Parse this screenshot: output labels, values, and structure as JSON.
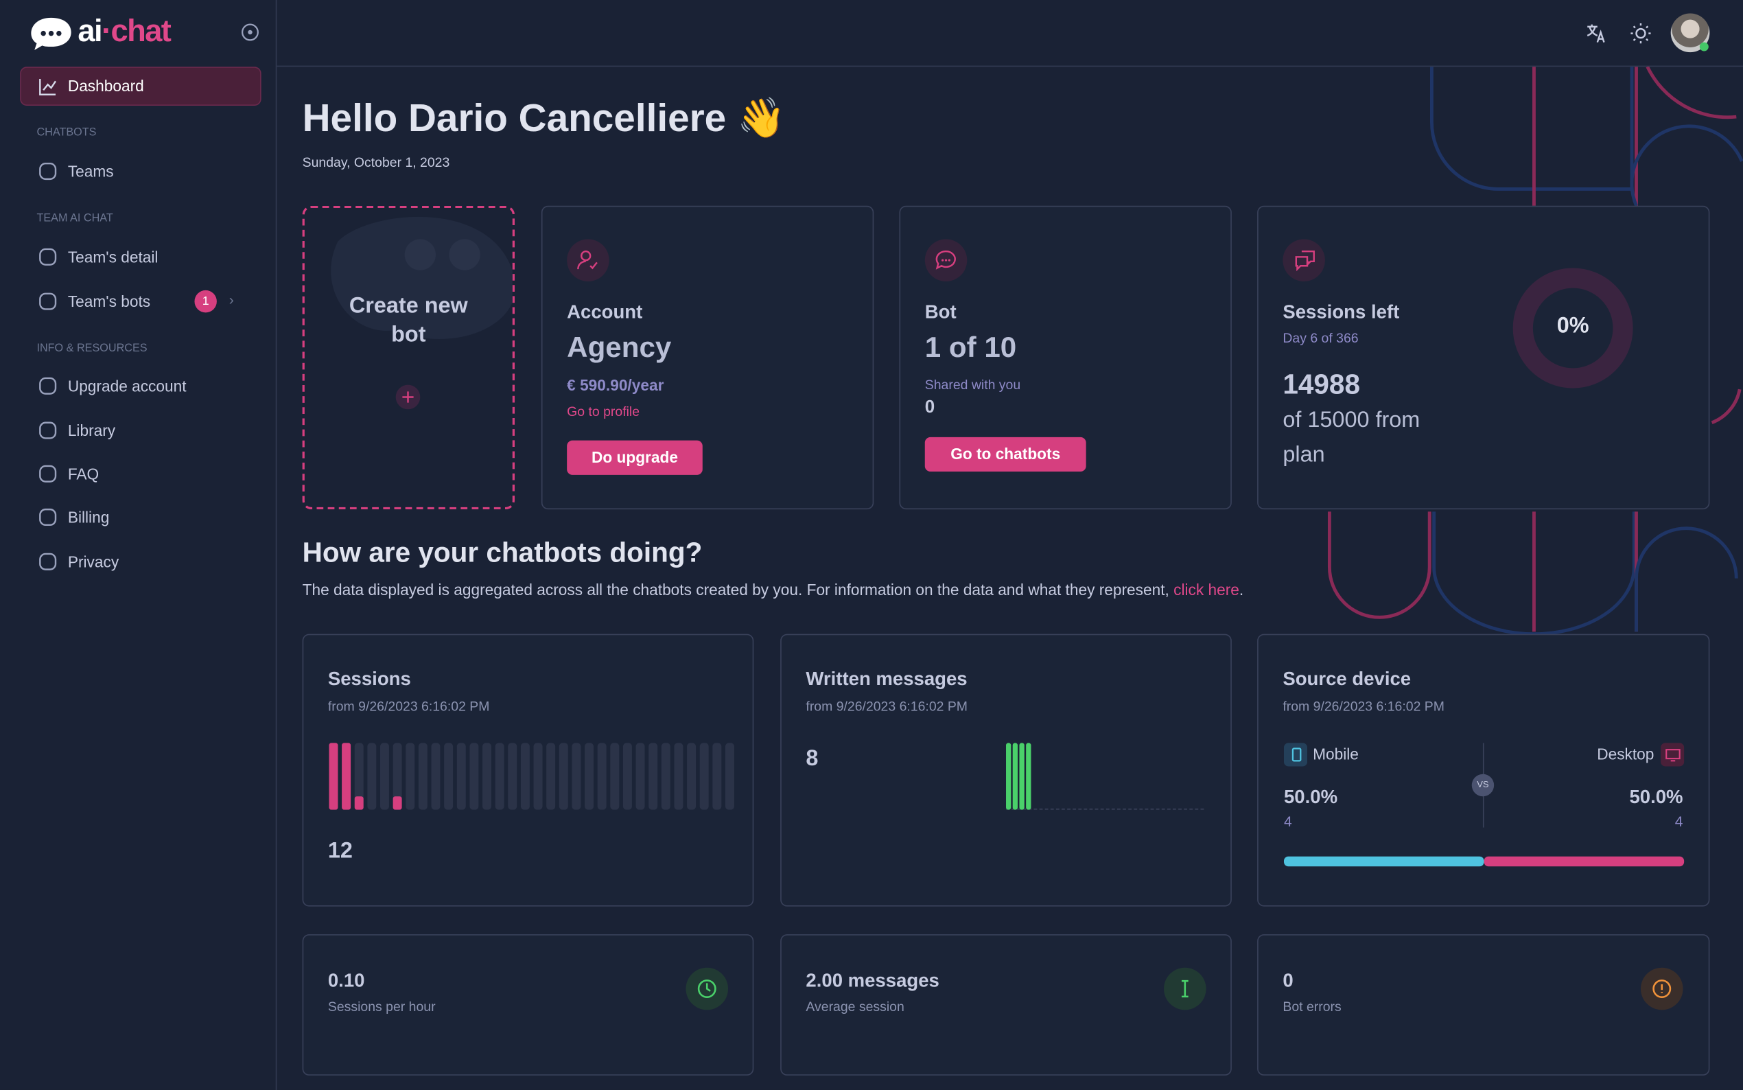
{
  "sidebar": {
    "logo_left": "ai",
    "logo_right": "chat",
    "dashboard": "Dashboard",
    "badge": 1,
    "groups": [
      {
        "heading": "CHATBOTS",
        "items": [
          "Teams"
        ]
      },
      {
        "heading": "TEAM AI CHAT",
        "items": [
          "Team's detail",
          "Team's bots"
        ]
      },
      {
        "heading": "INFO & RESOURCES",
        "items": [
          "Upgrade account",
          "Library",
          "FAQ",
          "Billing",
          "Privacy"
        ]
      }
    ]
  },
  "header": {
    "greeting": "Hello Dario Cancelliere 👋",
    "date": "Sunday, October 1, 2023"
  },
  "cards": {
    "create": "Create new bot",
    "account": {
      "label": "Account",
      "plan": "Agency",
      "price": "€ 590.90/year",
      "link": "Go to profile",
      "button": "Do upgrade"
    },
    "bot": {
      "label": "Bot",
      "count": "1 of 10",
      "shared_label": "Shared with you",
      "shared": 0,
      "button": "Go to chatbots"
    },
    "sessions_left": {
      "label": "Sessions left",
      "day": "Day 6 of 366",
      "remaining": 14988,
      "detail": "of 15000 from plan",
      "percent": "0%"
    }
  },
  "stats": {
    "title": "How are your chatbots doing?",
    "description": "The data displayed is aggregated across all the chatbots created by you. For information on the data and what they represent, ",
    "link": "click here",
    "end": ".",
    "sessions": {
      "title": "Sessions",
      "since": "from 9/26/2023 6:16:02 PM",
      "total": 12,
      "ylim": [
        0,
        5
      ],
      "values": [
        5,
        5,
        1,
        0,
        0,
        1,
        0,
        0,
        0,
        0,
        0,
        0,
        0,
        0,
        0,
        0,
        0,
        0,
        0,
        0,
        0,
        0,
        0,
        0,
        0,
        0,
        0,
        0,
        0,
        0,
        0,
        0
      ]
    },
    "messages": {
      "title": "Written messages",
      "since": "from 9/26/2023 6:16:02 PM",
      "total": 8,
      "ylim": [
        0,
        2
      ],
      "values": [
        2,
        2,
        2,
        2,
        0,
        0,
        0,
        0,
        0,
        0,
        0,
        0,
        0,
        0,
        0,
        0,
        0,
        0,
        0,
        0,
        0,
        0,
        0,
        0,
        0,
        0,
        0,
        0,
        0,
        0
      ]
    },
    "device": {
      "title": "Source device",
      "since": "from 9/26/2023 6:16:02 PM",
      "vs": "VS",
      "mobile": {
        "label": "Mobile",
        "share": {
          "value": 50,
          "label": "50.0%"
        },
        "count": 4
      },
      "desktop": {
        "label": "Desktop",
        "share": {
          "value": 50,
          "label": "50.0%"
        },
        "count": 4
      }
    },
    "kpis": [
      {
        "value": "0.10",
        "label": "Sessions per hour"
      },
      {
        "value": "2.00 messages",
        "label": "Average session"
      },
      {
        "value": 0,
        "label": "Bot errors"
      }
    ]
  }
}
